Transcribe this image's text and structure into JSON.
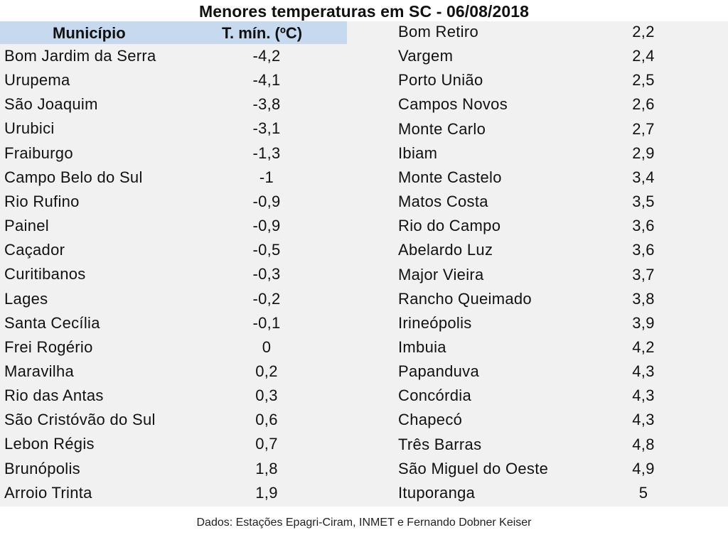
{
  "title": "Menores temperaturas em SC - 06/08/2018",
  "header": {
    "municipio": "Município",
    "tmin": "T. mín. (ºC)"
  },
  "left_rows": [
    {
      "name": "Bom Jardim da Serra",
      "value": "-4,2"
    },
    {
      "name": "Urupema",
      "value": "-4,1"
    },
    {
      "name": "São Joaquim",
      "value": "-3,8"
    },
    {
      "name": "Urubici",
      "value": "-3,1"
    },
    {
      "name": "Fraiburgo",
      "value": "-1,3"
    },
    {
      "name": "Campo Belo do Sul",
      "value": "-1"
    },
    {
      "name": "Rio Rufino",
      "value": "-0,9"
    },
    {
      "name": "Painel",
      "value": "-0,9"
    },
    {
      "name": "Caçador",
      "value": "-0,5"
    },
    {
      "name": "Curitibanos",
      "value": "-0,3"
    },
    {
      "name": "Lages",
      "value": "-0,2"
    },
    {
      "name": "Santa Cecília",
      "value": "-0,1"
    },
    {
      "name": "Frei Rogério",
      "value": "0"
    },
    {
      "name": "Maravilha",
      "value": "0,2"
    },
    {
      "name": "Rio das Antas",
      "value": "0,3"
    },
    {
      "name": "São Cristóvão do Sul",
      "value": "0,6"
    },
    {
      "name": "Lebon Régis",
      "value": "0,7"
    },
    {
      "name": "Brunópolis",
      "value": "1,8"
    },
    {
      "name": "Arroio Trinta",
      "value": "1,9"
    }
  ],
  "right_rows": [
    {
      "name": "Bom Retiro",
      "value": "2,2"
    },
    {
      "name": "Vargem",
      "value": "2,4"
    },
    {
      "name": "Porto União",
      "value": "2,5"
    },
    {
      "name": "Campos Novos",
      "value": "2,6"
    },
    {
      "name": "Monte Carlo",
      "value": "2,7"
    },
    {
      "name": "Ibiam",
      "value": "2,9"
    },
    {
      "name": "Monte Castelo",
      "value": "3,4"
    },
    {
      "name": "Matos Costa",
      "value": "3,5"
    },
    {
      "name": "Rio do Campo",
      "value": "3,6"
    },
    {
      "name": "Abelardo Luz",
      "value": "3,6"
    },
    {
      "name": "Major Vieira",
      "value": "3,7"
    },
    {
      "name": "Rancho Queimado",
      "value": "3,8"
    },
    {
      "name": "Irineópolis",
      "value": "3,9"
    },
    {
      "name": "Imbuia",
      "value": "4,2"
    },
    {
      "name": "Papanduva",
      "value": "4,3"
    },
    {
      "name": "Concórdia",
      "value": "4,3"
    },
    {
      "name": "Chapecó",
      "value": "4,3"
    },
    {
      "name": "Três Barras",
      "value": "4,8"
    },
    {
      "name": "São Miguel do Oeste",
      "value": "4,9"
    },
    {
      "name": "Ituporanga",
      "value": "5"
    }
  ],
  "footer": "Dados: Estações Epagri-Ciram, INMET e Fernando Dobner Keiser",
  "colors": {
    "header_band": "#c6d9ef",
    "table_bg": "#f1f1f1"
  }
}
